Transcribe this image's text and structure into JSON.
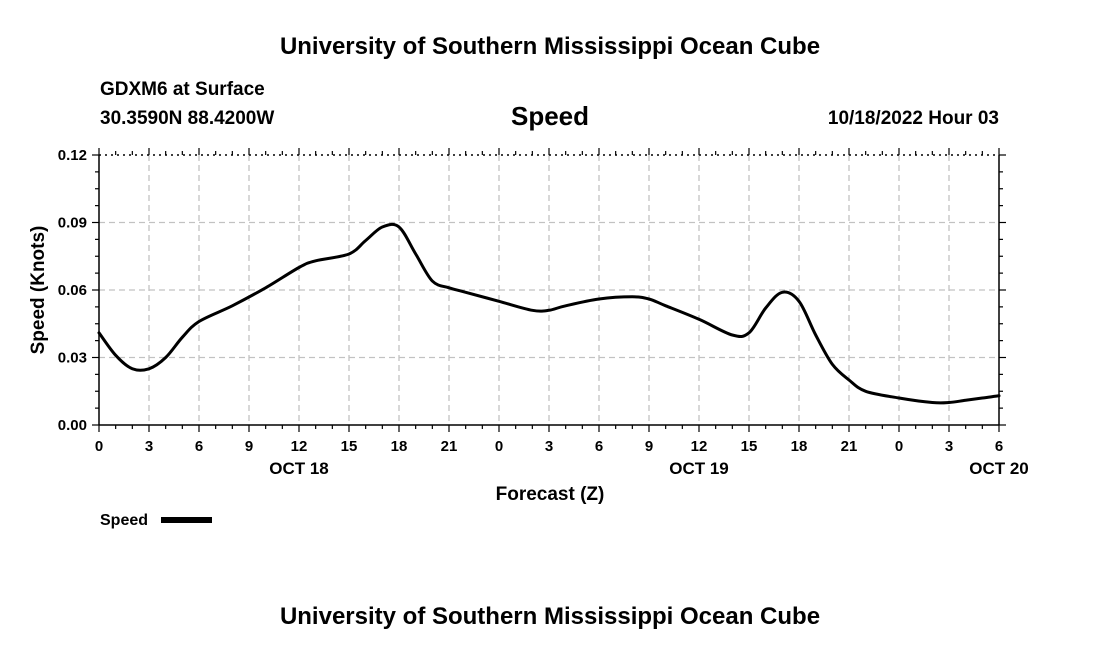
{
  "header": {
    "title_top": "University of Southern Mississippi Ocean Cube",
    "title_bottom": "University of Southern Mississippi Ocean Cube",
    "station": "GDXM6 at Surface",
    "coords": "30.3590N  88.4200W",
    "variable": "Speed",
    "timestamp": "10/18/2022 Hour 03"
  },
  "chart_data": {
    "type": "line",
    "xlabel": "Forecast (Z)",
    "ylabel": "Speed (Knots)",
    "xlim": [
      0,
      54
    ],
    "ylim": [
      0,
      0.12
    ],
    "yticks": [
      "0.00",
      "0.03",
      "0.06",
      "0.09",
      "0.12"
    ],
    "xtick_labels": [
      "0",
      "3",
      "6",
      "9",
      "12",
      "15",
      "18",
      "21",
      "0",
      "3",
      "6",
      "9",
      "12",
      "15",
      "18",
      "21",
      "0",
      "3",
      "6"
    ],
    "date_labels": [
      {
        "label": "OCT 18",
        "at_hour": 12
      },
      {
        "label": "OCT 19",
        "at_hour": 36
      },
      {
        "label": "OCT 20",
        "at_hour": 54
      }
    ],
    "grid": true,
    "legend": {
      "placement": "bottom-left",
      "label": "Speed"
    },
    "series": [
      {
        "name": "Speed",
        "color": "#000000",
        "x": [
          0,
          1,
          2,
          3,
          4,
          5,
          6,
          8,
          10,
          12,
          13,
          15,
          16,
          17,
          18,
          19,
          20,
          21,
          22,
          24,
          26,
          27,
          28,
          30,
          32,
          33,
          34,
          36,
          38,
          39,
          40,
          41,
          42,
          43,
          44,
          45,
          46,
          48,
          50,
          51,
          52,
          53,
          54
        ],
        "values": [
          0.041,
          0.031,
          0.025,
          0.025,
          0.03,
          0.039,
          0.046,
          0.053,
          0.061,
          0.07,
          0.073,
          0.076,
          0.082,
          0.088,
          0.088,
          0.076,
          0.064,
          0.061,
          0.059,
          0.055,
          0.051,
          0.051,
          0.053,
          0.056,
          0.057,
          0.056,
          0.053,
          0.047,
          0.04,
          0.041,
          0.052,
          0.059,
          0.055,
          0.04,
          0.027,
          0.02,
          0.015,
          0.012,
          0.01,
          0.01,
          0.011,
          0.012,
          0.013
        ]
      }
    ]
  }
}
